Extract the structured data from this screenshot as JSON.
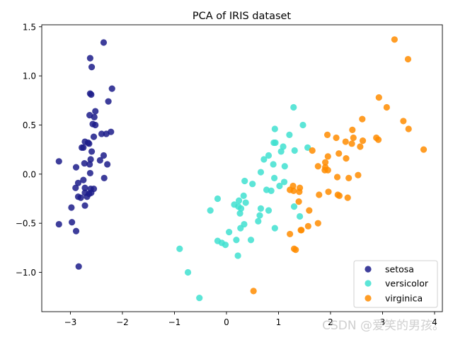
{
  "chart_data": {
    "type": "scatter",
    "title": "PCA of IRIS dataset",
    "xlabel": "",
    "ylabel": "",
    "xlim": [
      -3.55,
      4.15
    ],
    "ylim": [
      -1.4,
      1.52
    ],
    "xticks": [
      -3,
      -2,
      -1,
      0,
      1,
      2,
      3,
      4
    ],
    "xtick_labels": [
      "−3",
      "−2",
      "−1",
      "0",
      "1",
      "2",
      "3",
      "4"
    ],
    "yticks": [
      -1.0,
      -0.5,
      0.0,
      0.5,
      1.0,
      1.5
    ],
    "ytick_labels": [
      "−1.0",
      "−0.5",
      "0.0",
      "0.5",
      "1.0",
      "1.5"
    ],
    "grid": false,
    "legend_position": "bottom-right",
    "series": [
      {
        "name": "setosa",
        "color": "#1c1c8a",
        "points": [
          [
            -2.36,
            1.34
          ],
          [
            -2.62,
            1.18
          ],
          [
            -2.59,
            1.09
          ],
          [
            -2.62,
            0.82
          ],
          [
            -2.6,
            0.81
          ],
          [
            -2.2,
            0.87
          ],
          [
            -2.27,
            0.74
          ],
          [
            -2.52,
            0.64
          ],
          [
            -2.63,
            0.6
          ],
          [
            -2.54,
            0.58
          ],
          [
            -2.57,
            0.51
          ],
          [
            -2.52,
            0.5
          ],
          [
            -2.31,
            0.41
          ],
          [
            -2.22,
            0.43
          ],
          [
            -2.4,
            0.41
          ],
          [
            -2.55,
            0.38
          ],
          [
            -2.72,
            0.33
          ],
          [
            -2.66,
            0.32
          ],
          [
            -2.64,
            0.31
          ],
          [
            -2.78,
            0.27
          ],
          [
            -2.75,
            0.27
          ],
          [
            -2.59,
            0.23
          ],
          [
            -2.36,
            0.19
          ],
          [
            -2.43,
            0.14
          ],
          [
            -2.61,
            0.15
          ],
          [
            -2.73,
            0.11
          ],
          [
            -2.63,
            0.1
          ],
          [
            -2.29,
            0.1
          ],
          [
            -3.22,
            0.13
          ],
          [
            -2.89,
            0.07
          ],
          [
            -2.62,
            0.01
          ],
          [
            -2.35,
            -0.04
          ],
          [
            -2.75,
            -0.06
          ],
          [
            -2.85,
            -0.09
          ],
          [
            -2.9,
            -0.14
          ],
          [
            -2.72,
            -0.14
          ],
          [
            -2.61,
            -0.15
          ],
          [
            -2.55,
            -0.15
          ],
          [
            -2.72,
            -0.19
          ],
          [
            -2.64,
            -0.2
          ],
          [
            -2.6,
            -0.19
          ],
          [
            -2.85,
            -0.23
          ],
          [
            -2.8,
            -0.24
          ],
          [
            -2.68,
            -0.23
          ],
          [
            -2.72,
            -0.32
          ],
          [
            -2.98,
            -0.34
          ],
          [
            -3.22,
            -0.51
          ],
          [
            -2.97,
            -0.49
          ],
          [
            -2.89,
            -0.58
          ],
          [
            -2.84,
            -0.94
          ]
        ]
      },
      {
        "name": "versicolor",
        "color": "#40e0d0",
        "points": [
          [
            1.29,
            0.68
          ],
          [
            1.47,
            0.5
          ],
          [
            0.93,
            0.46
          ],
          [
            1.21,
            0.4
          ],
          [
            1.09,
            0.28
          ],
          [
            0.91,
            0.32
          ],
          [
            0.94,
            0.32
          ],
          [
            1.31,
            0.24
          ],
          [
            1.56,
            0.27
          ],
          [
            1.05,
            0.23
          ],
          [
            0.81,
            0.19
          ],
          [
            0.72,
            0.15
          ],
          [
            0.9,
            0.1
          ],
          [
            1.12,
            0.08
          ],
          [
            0.66,
            0.02
          ],
          [
            0.92,
            -0.04
          ],
          [
            0.35,
            -0.07
          ],
          [
            0.5,
            -0.1
          ],
          [
            1.02,
            -0.12
          ],
          [
            1.11,
            -0.08
          ],
          [
            0.77,
            -0.16
          ],
          [
            0.86,
            -0.17
          ],
          [
            -0.17,
            -0.25
          ],
          [
            0.33,
            -0.22
          ],
          [
            0.24,
            -0.27
          ],
          [
            0.37,
            -0.29
          ],
          [
            0.15,
            -0.31
          ],
          [
            0.23,
            -0.33
          ],
          [
            0.28,
            -0.35
          ],
          [
            -0.31,
            -0.37
          ],
          [
            0.66,
            -0.35
          ],
          [
            0.64,
            -0.42
          ],
          [
            0.81,
            -0.37
          ],
          [
            1.3,
            -0.33
          ],
          [
            0.26,
            -0.4
          ],
          [
            1.41,
            -0.43
          ],
          [
            0.61,
            -0.48
          ],
          [
            0.34,
            -0.51
          ],
          [
            0.27,
            -0.55
          ],
          [
            0.93,
            -0.55
          ],
          [
            0.05,
            -0.59
          ],
          [
            0.19,
            -0.67
          ],
          [
            -0.17,
            -0.68
          ],
          [
            -0.09,
            -0.7
          ],
          [
            -0.02,
            -0.72
          ],
          [
            0.47,
            -0.67
          ],
          [
            -0.9,
            -0.76
          ],
          [
            0.22,
            -0.83
          ],
          [
            -0.74,
            -1.0
          ],
          [
            -0.52,
            -1.26
          ]
        ]
      },
      {
        "name": "virginica",
        "color": "#ff8c00",
        "points": [
          [
            3.23,
            1.37
          ],
          [
            3.49,
            1.17
          ],
          [
            2.93,
            0.78
          ],
          [
            3.08,
            0.68
          ],
          [
            2.61,
            0.56
          ],
          [
            3.4,
            0.54
          ],
          [
            3.5,
            0.46
          ],
          [
            2.42,
            0.45
          ],
          [
            1.94,
            0.4
          ],
          [
            2.11,
            0.37
          ],
          [
            2.44,
            0.37
          ],
          [
            2.29,
            0.33
          ],
          [
            2.41,
            0.31
          ],
          [
            2.62,
            0.34
          ],
          [
            2.88,
            0.37
          ],
          [
            2.92,
            0.35
          ],
          [
            2.57,
            0.28
          ],
          [
            3.79,
            0.25
          ],
          [
            1.65,
            0.24
          ],
          [
            2.16,
            0.21
          ],
          [
            2.3,
            0.16
          ],
          [
            1.95,
            0.18
          ],
          [
            1.9,
            0.12
          ],
          [
            1.9,
            0.07
          ],
          [
            1.76,
            0.08
          ],
          [
            1.89,
            0.04
          ],
          [
            2.13,
            -0.03
          ],
          [
            1.95,
            0.04
          ],
          [
            2.53,
            -0.01
          ],
          [
            2.35,
            -0.04
          ],
          [
            1.41,
            -0.14
          ],
          [
            1.28,
            -0.12
          ],
          [
            1.22,
            -0.16
          ],
          [
            1.29,
            -0.17
          ],
          [
            1.4,
            -0.18
          ],
          [
            1.78,
            -0.21
          ],
          [
            1.96,
            -0.18
          ],
          [
            2.14,
            -0.21
          ],
          [
            2.17,
            -0.22
          ],
          [
            2.33,
            -0.24
          ],
          [
            1.39,
            -0.28
          ],
          [
            1.59,
            -0.37
          ],
          [
            1.76,
            -0.5
          ],
          [
            1.57,
            -0.53
          ],
          [
            1.44,
            -0.57
          ],
          [
            1.43,
            -0.57
          ],
          [
            1.22,
            -0.61
          ],
          [
            1.3,
            -0.76
          ],
          [
            1.33,
            -0.77
          ],
          [
            0.52,
            -1.19
          ]
        ]
      }
    ]
  },
  "watermark": "CSDN @爱笑的男孩。"
}
